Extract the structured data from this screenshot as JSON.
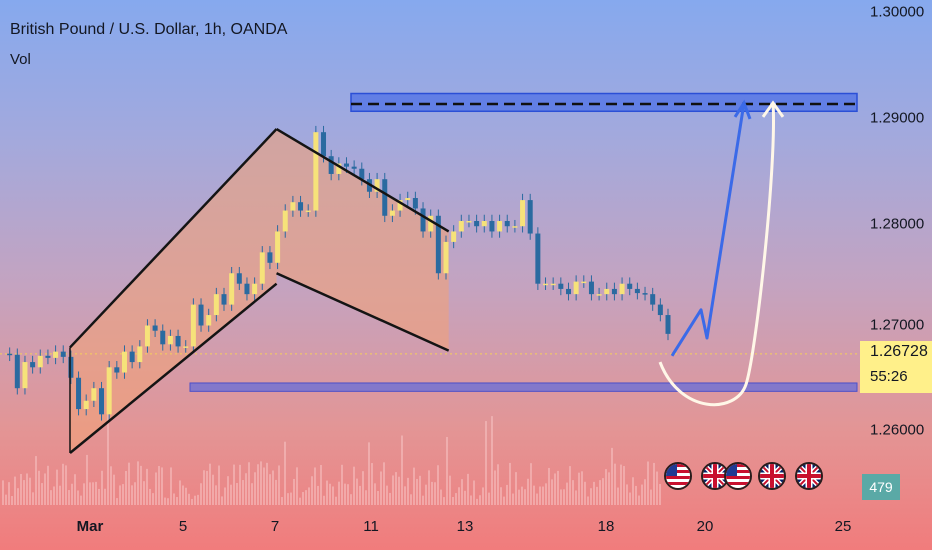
{
  "header": {
    "title": "British Pound / U.S. Dollar, 1h, OANDA",
    "volume_label": "Vol"
  },
  "price_axis": {
    "ticks": [
      "1.30000",
      "1.29000",
      "1.28000",
      "1.27000",
      "1.26000"
    ],
    "current_price": "1.26728",
    "countdown": "55:26",
    "badge_color": "#fff08a"
  },
  "volume_badge": {
    "value": "479",
    "color": "#5aa9a6"
  },
  "time_axis": {
    "ticks": [
      {
        "label": "Mar",
        "bold": true
      },
      {
        "label": "5",
        "bold": false
      },
      {
        "label": "7",
        "bold": false
      },
      {
        "label": "11",
        "bold": false
      },
      {
        "label": "13",
        "bold": false
      },
      {
        "label": "18",
        "bold": false
      },
      {
        "label": "20",
        "bold": false
      },
      {
        "label": "25",
        "bold": false
      }
    ]
  },
  "flags": [
    {
      "name": "us-flag-icon"
    },
    {
      "name": "uk-flag-icon"
    },
    {
      "name": "us-flag-icon"
    },
    {
      "name": "uk-flag-icon"
    },
    {
      "name": "uk-flag-icon"
    }
  ],
  "chart_data": {
    "type": "line",
    "title": "British Pound / U.S. Dollar, 1h, OANDA",
    "xlabel": "",
    "ylabel": "",
    "ylim": [
      1.2548,
      1.3008
    ],
    "grid": false,
    "series": [
      {
        "values": [
          1.2673,
          1.2672,
          1.264,
          1.2665,
          1.266,
          1.2671,
          1.2669,
          1.2675,
          1.267,
          1.265,
          1.262,
          1.2628,
          1.264,
          1.2615,
          1.266,
          1.2655,
          1.2675,
          1.2665,
          1.268,
          1.27,
          1.2695,
          1.2682,
          1.269,
          1.268,
          1.268,
          1.272,
          1.27,
          1.271,
          1.273,
          1.272,
          1.275,
          1.274,
          1.273,
          1.274,
          1.277,
          1.276,
          1.279,
          1.281,
          1.2818,
          1.281,
          1.281,
          1.2885,
          1.2862,
          1.2845,
          1.2855,
          1.2852,
          1.285,
          1.284,
          1.2828,
          1.284,
          1.2805,
          1.281,
          1.282,
          1.2822,
          1.2812,
          1.279,
          1.2805,
          1.275,
          1.278,
          1.279,
          1.28,
          1.28,
          1.2795,
          1.28,
          1.279,
          1.28,
          1.2795,
          1.2795,
          1.282,
          1.2788,
          1.274,
          1.274,
          1.274,
          1.2735,
          1.273,
          1.2742,
          1.2742,
          1.273,
          1.273,
          1.2735,
          1.273,
          1.274,
          1.2735,
          1.2731,
          1.273,
          1.272,
          1.271,
          1.2692
        ]
      },
      {
        "name": "Vol",
        "values": []
      }
    ],
    "annotations": {
      "channel_up_lower": [
        [
          0.0,
          1.2578
        ],
        [
          0.24,
          1.274
        ]
      ],
      "channel_up_upper": [
        [
          0.0,
          1.2679
        ],
        [
          0.24,
          1.2888
        ]
      ],
      "channel_down_upper": [
        [
          0.24,
          1.2888
        ],
        [
          0.44,
          1.279
        ]
      ],
      "channel_down_lower": [
        [
          0.24,
          1.275
        ],
        [
          0.44,
          1.2676
        ]
      ],
      "resistance_zone": [
        1.2905,
        1.2922
      ],
      "resistance_line": 1.2912,
      "support_zone": [
        1.2637,
        1.2645
      ],
      "projection_path_blue": [
        1.2671,
        1.2715,
        1.2688,
        1.2913
      ],
      "projection_path_white": [
        1.2665,
        1.2636,
        1.2913
      ],
      "current_price_line": 1.26728
    }
  }
}
